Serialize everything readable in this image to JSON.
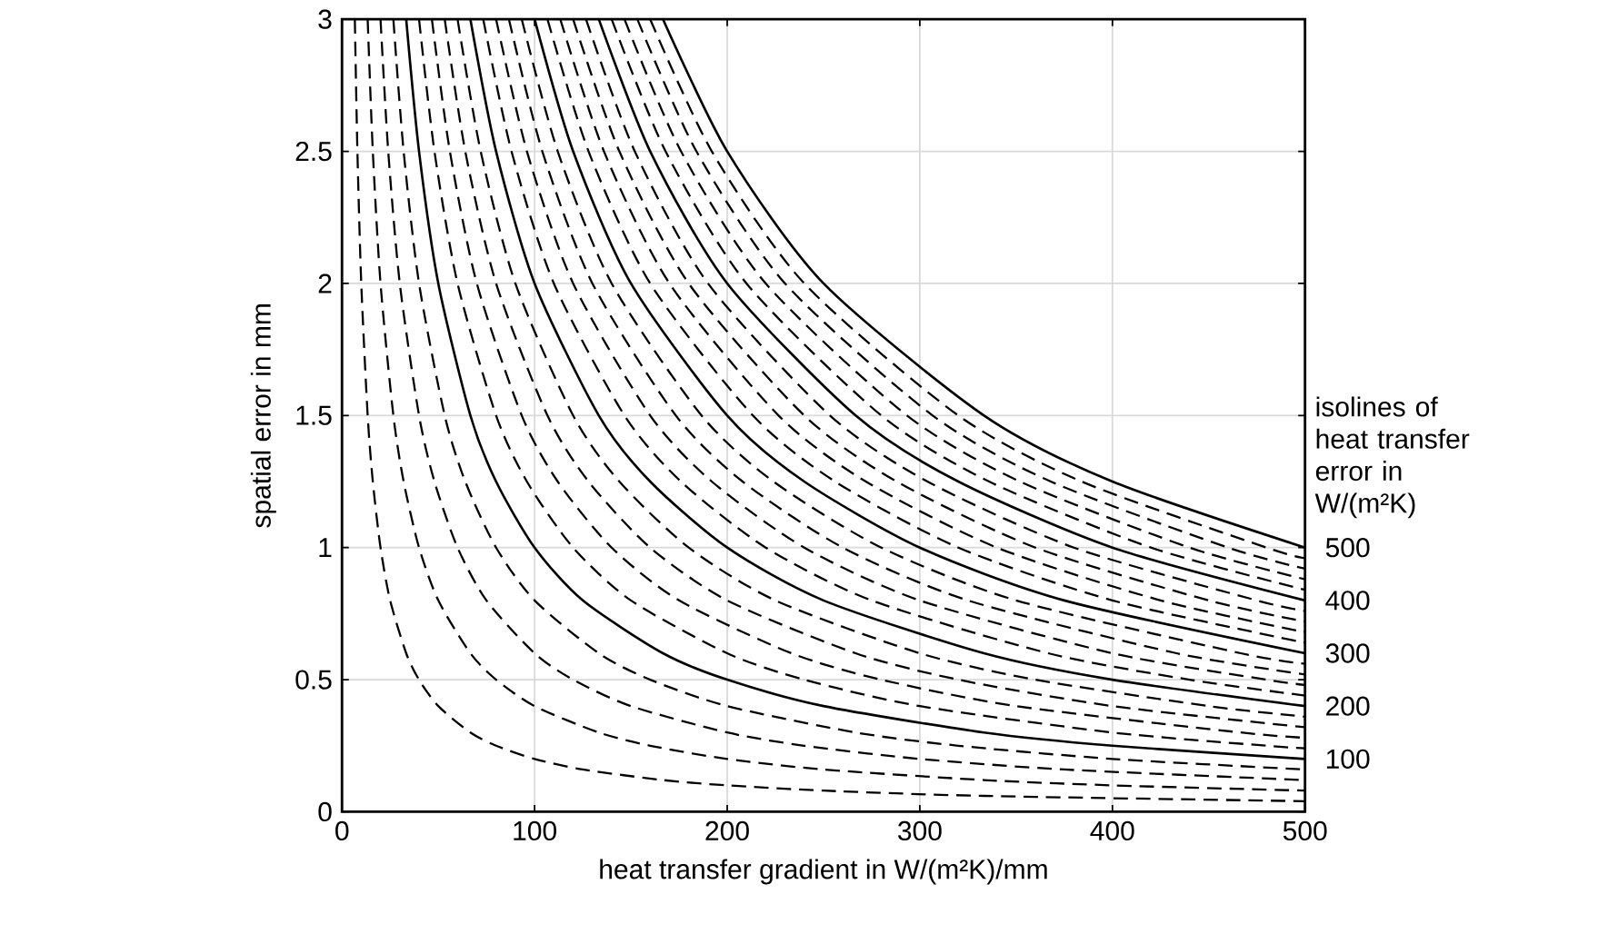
{
  "chart_data": {
    "type": "line",
    "xlabel": "heat transfer gradient in W/(m²K)/mm",
    "ylabel": "spatial error in mm",
    "legend_title": "isolines of heat transfer error in W/(m²K)",
    "xlim": [
      0,
      500
    ],
    "ylim": [
      0,
      3
    ],
    "xticks": [
      0,
      100,
      200,
      300,
      400,
      500
    ],
    "yticks": [
      0,
      0.5,
      1,
      1.5,
      2,
      2.5,
      3
    ],
    "grid": true,
    "legend": "right",
    "series": [
      {
        "color": "#000000",
        "line_style": "dashed",
        "x": [
          6.67,
          8,
          10,
          13.33,
          16,
          20,
          25,
          33.33,
          40,
          50,
          66.67,
          80,
          100,
          125,
          166.67,
          200,
          250,
          333.33,
          500
        ],
        "values": [
          3,
          2.5,
          2,
          1.5,
          1.25,
          1,
          0.8,
          0.6,
          0.5,
          0.4,
          0.3,
          0.25,
          0.2,
          0.16,
          0.12,
          0.1,
          0.08,
          0.06,
          0.04
        ]
      },
      {
        "color": "#000000",
        "line_style": "dashed",
        "x": [
          13.33,
          16,
          20,
          26.67,
          32,
          40,
          50,
          66.67,
          80,
          100,
          133.33,
          160,
          200,
          250,
          333.33,
          400,
          500
        ],
        "values": [
          3,
          2.5,
          2,
          1.5,
          1.25,
          1,
          0.8,
          0.6,
          0.5,
          0.4,
          0.3,
          0.25,
          0.2,
          0.16,
          0.12,
          0.1,
          0.08
        ]
      },
      {
        "color": "#000000",
        "line_style": "dashed",
        "x": [
          20,
          24,
          30,
          40,
          48,
          60,
          75,
          100,
          120,
          150,
          200,
          240,
          300,
          375,
          500
        ],
        "values": [
          3,
          2.5,
          2,
          1.5,
          1.25,
          1,
          0.8,
          0.6,
          0.5,
          0.4,
          0.3,
          0.25,
          0.2,
          0.16,
          0.12
        ]
      },
      {
        "color": "#000000",
        "line_style": "dashed",
        "x": [
          26.67,
          32,
          40,
          53.33,
          64,
          80,
          100,
          133.33,
          160,
          200,
          266.67,
          320,
          400,
          500
        ],
        "values": [
          3,
          2.5,
          2,
          1.5,
          1.25,
          1,
          0.8,
          0.6,
          0.5,
          0.4,
          0.3,
          0.25,
          0.2,
          0.16
        ]
      },
      {
        "name": "100",
        "color": "#000000",
        "line_style": "solid",
        "x": [
          33.33,
          40,
          50,
          66.67,
          80,
          100,
          125,
          166.67,
          200,
          250,
          333.33,
          400,
          500
        ],
        "values": [
          3,
          2.5,
          2,
          1.5,
          1.25,
          1,
          0.8,
          0.6,
          0.5,
          0.4,
          0.3,
          0.25,
          0.2
        ]
      },
      {
        "color": "#000000",
        "line_style": "dashed",
        "x": [
          40,
          48,
          60,
          80,
          96,
          120,
          150,
          200,
          240,
          300,
          400,
          480,
          500
        ],
        "values": [
          3,
          2.5,
          2,
          1.5,
          1.25,
          1,
          0.8,
          0.6,
          0.5,
          0.4,
          0.3,
          0.25,
          0.24
        ]
      },
      {
        "color": "#000000",
        "line_style": "dashed",
        "x": [
          46.67,
          56,
          70,
          93.33,
          112,
          140,
          175,
          233.33,
          280,
          350,
          466.67,
          500
        ],
        "values": [
          3,
          2.5,
          2,
          1.5,
          1.25,
          1,
          0.8,
          0.6,
          0.5,
          0.4,
          0.3,
          0.28
        ]
      },
      {
        "color": "#000000",
        "line_style": "dashed",
        "x": [
          53.33,
          64,
          80,
          106.67,
          128,
          160,
          200,
          266.67,
          320,
          400,
          500
        ],
        "values": [
          3,
          2.5,
          2,
          1.5,
          1.25,
          1,
          0.8,
          0.6,
          0.5,
          0.4,
          0.32
        ]
      },
      {
        "color": "#000000",
        "line_style": "dashed",
        "x": [
          60,
          72,
          90,
          120,
          144,
          180,
          225,
          300,
          360,
          450,
          500
        ],
        "values": [
          3,
          2.5,
          2,
          1.5,
          1.25,
          1,
          0.8,
          0.6,
          0.5,
          0.4,
          0.36
        ]
      },
      {
        "name": "200",
        "color": "#000000",
        "line_style": "solid",
        "x": [
          66.67,
          80,
          100,
          133.33,
          160,
          200,
          250,
          333.33,
          400,
          500
        ],
        "values": [
          3,
          2.5,
          2,
          1.5,
          1.25,
          1,
          0.8,
          0.6,
          0.5,
          0.4
        ]
      },
      {
        "color": "#000000",
        "line_style": "dashed",
        "x": [
          73.33,
          88,
          110,
          146.67,
          176,
          220,
          275,
          366.67,
          440,
          500
        ],
        "values": [
          3,
          2.5,
          2,
          1.5,
          1.25,
          1,
          0.8,
          0.6,
          0.5,
          0.44
        ]
      },
      {
        "color": "#000000",
        "line_style": "dashed",
        "x": [
          80,
          96,
          120,
          160,
          192,
          240,
          300,
          400,
          480,
          500
        ],
        "values": [
          3,
          2.5,
          2,
          1.5,
          1.25,
          1,
          0.8,
          0.6,
          0.5,
          0.48
        ]
      },
      {
        "color": "#000000",
        "line_style": "dashed",
        "x": [
          86.67,
          104,
          130,
          173.33,
          208,
          260,
          325,
          433.33,
          500
        ],
        "values": [
          3,
          2.5,
          2,
          1.5,
          1.25,
          1,
          0.8,
          0.6,
          0.52
        ]
      },
      {
        "color": "#000000",
        "line_style": "dashed",
        "x": [
          93.33,
          112,
          140,
          186.67,
          224,
          280,
          350,
          466.67,
          500
        ],
        "values": [
          3,
          2.5,
          2,
          1.5,
          1.25,
          1,
          0.8,
          0.6,
          0.56
        ]
      },
      {
        "name": "300",
        "color": "#000000",
        "line_style": "solid",
        "x": [
          100,
          120,
          150,
          200,
          240,
          300,
          375,
          500
        ],
        "values": [
          3,
          2.5,
          2,
          1.5,
          1.25,
          1,
          0.8,
          0.6
        ]
      },
      {
        "color": "#000000",
        "line_style": "dashed",
        "x": [
          106.67,
          128,
          160,
          213.33,
          256,
          320,
          400,
          500
        ],
        "values": [
          3,
          2.5,
          2,
          1.5,
          1.25,
          1,
          0.8,
          0.64
        ]
      },
      {
        "color": "#000000",
        "line_style": "dashed",
        "x": [
          113.33,
          136,
          170,
          226.67,
          272,
          340,
          425,
          500
        ],
        "values": [
          3,
          2.5,
          2,
          1.5,
          1.25,
          1,
          0.8,
          0.68
        ]
      },
      {
        "color": "#000000",
        "line_style": "dashed",
        "x": [
          120,
          144,
          180,
          240,
          288,
          360,
          450,
          500
        ],
        "values": [
          3,
          2.5,
          2,
          1.5,
          1.25,
          1,
          0.8,
          0.72
        ]
      },
      {
        "color": "#000000",
        "line_style": "dashed",
        "x": [
          126.67,
          152,
          190,
          253.33,
          304,
          380,
          475,
          500
        ],
        "values": [
          3,
          2.5,
          2,
          1.5,
          1.25,
          1,
          0.8,
          0.76
        ]
      },
      {
        "name": "400",
        "color": "#000000",
        "line_style": "solid",
        "x": [
          133.33,
          160,
          200,
          266.67,
          320,
          400,
          500
        ],
        "values": [
          3,
          2.5,
          2,
          1.5,
          1.25,
          1,
          0.8
        ]
      },
      {
        "color": "#000000",
        "line_style": "dashed",
        "x": [
          140,
          168,
          210,
          280,
          336,
          420,
          500
        ],
        "values": [
          3,
          2.5,
          2,
          1.5,
          1.25,
          1,
          0.84
        ]
      },
      {
        "color": "#000000",
        "line_style": "dashed",
        "x": [
          146.67,
          176,
          220,
          293.33,
          352,
          440,
          500
        ],
        "values": [
          3,
          2.5,
          2,
          1.5,
          1.25,
          1,
          0.88
        ]
      },
      {
        "color": "#000000",
        "line_style": "dashed",
        "x": [
          153.33,
          184,
          230,
          306.67,
          368,
          460,
          500
        ],
        "values": [
          3,
          2.5,
          2,
          1.5,
          1.25,
          1,
          0.92
        ]
      },
      {
        "color": "#000000",
        "line_style": "dashed",
        "x": [
          160,
          192,
          240,
          320,
          384,
          480,
          500
        ],
        "values": [
          3,
          2.5,
          2,
          1.5,
          1.25,
          1,
          0.96
        ]
      },
      {
        "name": "500",
        "color": "#000000",
        "line_style": "solid",
        "x": [
          166.67,
          200,
          250,
          333.33,
          400,
          500
        ],
        "values": [
          3,
          2.5,
          2,
          1.5,
          1.25,
          1
        ]
      }
    ]
  }
}
